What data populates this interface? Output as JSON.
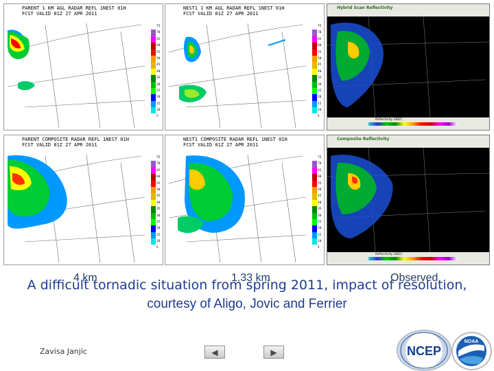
{
  "panels": {
    "top_left_title": "PARENT 1 KM AGL RADAR REFL 1NEST 01H\nFCST VALID 01Z 27 APR 2011",
    "top_mid_title": "NEST1 1 KM AGL RADAR REFL 1NEST 01H\nFCST VALID 01Z 27 APR 2011",
    "bot_left_title": "PARENT COMPOSITE RADAR REFL 1NEST 01H\nFCST VALID 01Z 27 APR 2011",
    "bot_mid_title": "NEST1 COMPOSITE RADAR REFL 1NEST 01H\nFCST VALID 01Z 27 APR 2011",
    "colorbar_values": [
      "75",
      "70",
      "65",
      "60",
      "55",
      "50",
      "45",
      "40",
      "35",
      "30",
      "25",
      "20",
      "15",
      "10",
      "5"
    ],
    "colorbar_colors": [
      "#ffffff",
      "#9955c9",
      "#ff00ff",
      "#c00000",
      "#ff0000",
      "#ff9900",
      "#e6b800",
      "#ffff00",
      "#008800",
      "#00bb00",
      "#00ff00",
      "#0000ff",
      "#0099ff",
      "#00e6e6",
      "#ffffff"
    ],
    "obs_top_title": "Hybrid Scan Reflectivity",
    "obs_bot_title": "Composite Reflectivity",
    "obs_product": "Reflectivity (dBZ)"
  },
  "labels": {
    "col1": "4 km",
    "col2": "1.33 km",
    "col3": "Observed"
  },
  "caption_line1": "A difficult tornadic situation from spring 2011, impact of resolution,",
  "caption_line2": "courtesy of Aligo, Jovic and Ferrier",
  "author": "Zavisa Janjic",
  "nav": {
    "prev": "◀",
    "next": "▶"
  },
  "logos": {
    "ncep": "NCEP",
    "noaa": "NOAA"
  }
}
